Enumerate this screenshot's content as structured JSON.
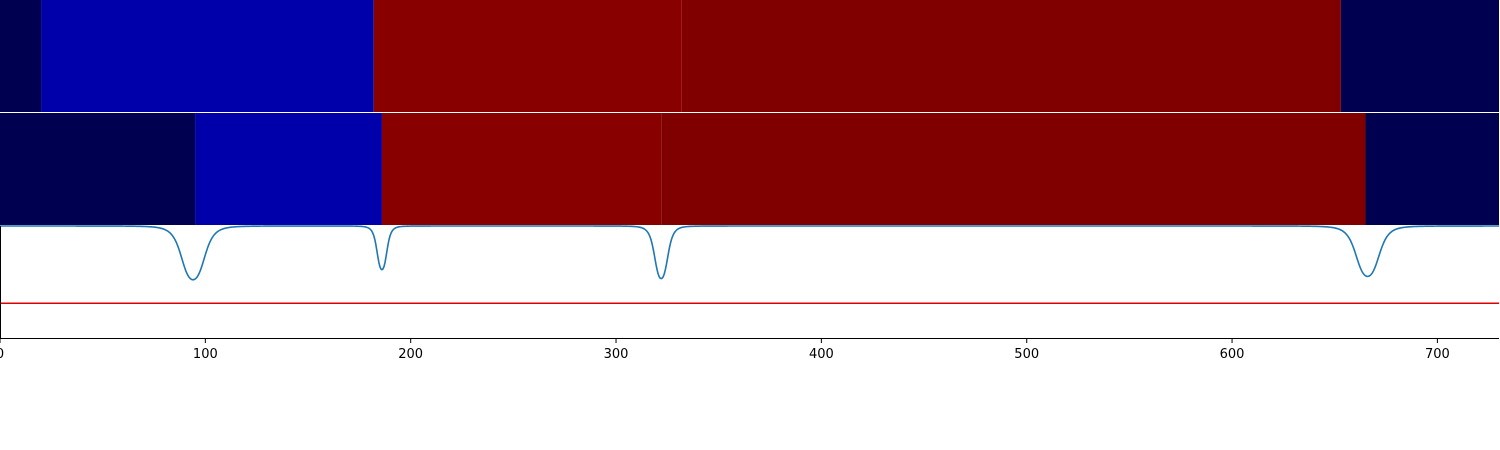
{
  "chart_data": {
    "type": "heatmap",
    "xlim": [
      0,
      730
    ],
    "x_ticks": [
      0,
      100,
      200,
      300,
      400,
      500,
      600,
      700
    ],
    "tick_labels": [
      "0",
      "100",
      "200",
      "300",
      "400",
      "500",
      "600",
      "700"
    ],
    "rows": [
      {
        "segments": [
          {
            "start": 0,
            "end": 20,
            "color": "#000050"
          },
          {
            "start": 20,
            "end": 182,
            "color": "#0000aa"
          },
          {
            "start": 182,
            "end": 332,
            "color": "#880000"
          },
          {
            "start": 332,
            "end": 653,
            "color": "#800000"
          },
          {
            "start": 653,
            "end": 730,
            "color": "#000050"
          }
        ]
      },
      {
        "segments": [
          {
            "start": 0,
            "end": 95,
            "color": "#000050"
          },
          {
            "start": 95,
            "end": 186,
            "color": "#0000aa"
          },
          {
            "start": 186,
            "end": 322,
            "color": "#880000"
          },
          {
            "start": 322,
            "end": 665,
            "color": "#800000"
          },
          {
            "start": 665,
            "end": 730,
            "color": "#000050"
          }
        ]
      }
    ],
    "signal": {
      "color": "#1f77b4",
      "ylim": [
        0,
        1
      ],
      "baseline": 1.0,
      "dips": [
        {
          "center": 94,
          "depth": 0.48,
          "width": 7
        },
        {
          "center": 186,
          "depth": 0.39,
          "width": 3
        },
        {
          "center": 322,
          "depth": 0.47,
          "width": 4
        },
        {
          "center": 666,
          "depth": 0.45,
          "width": 7
        }
      ],
      "x_end": 730
    },
    "threshold": {
      "value": 0.31,
      "color": "#dd0000"
    }
  }
}
